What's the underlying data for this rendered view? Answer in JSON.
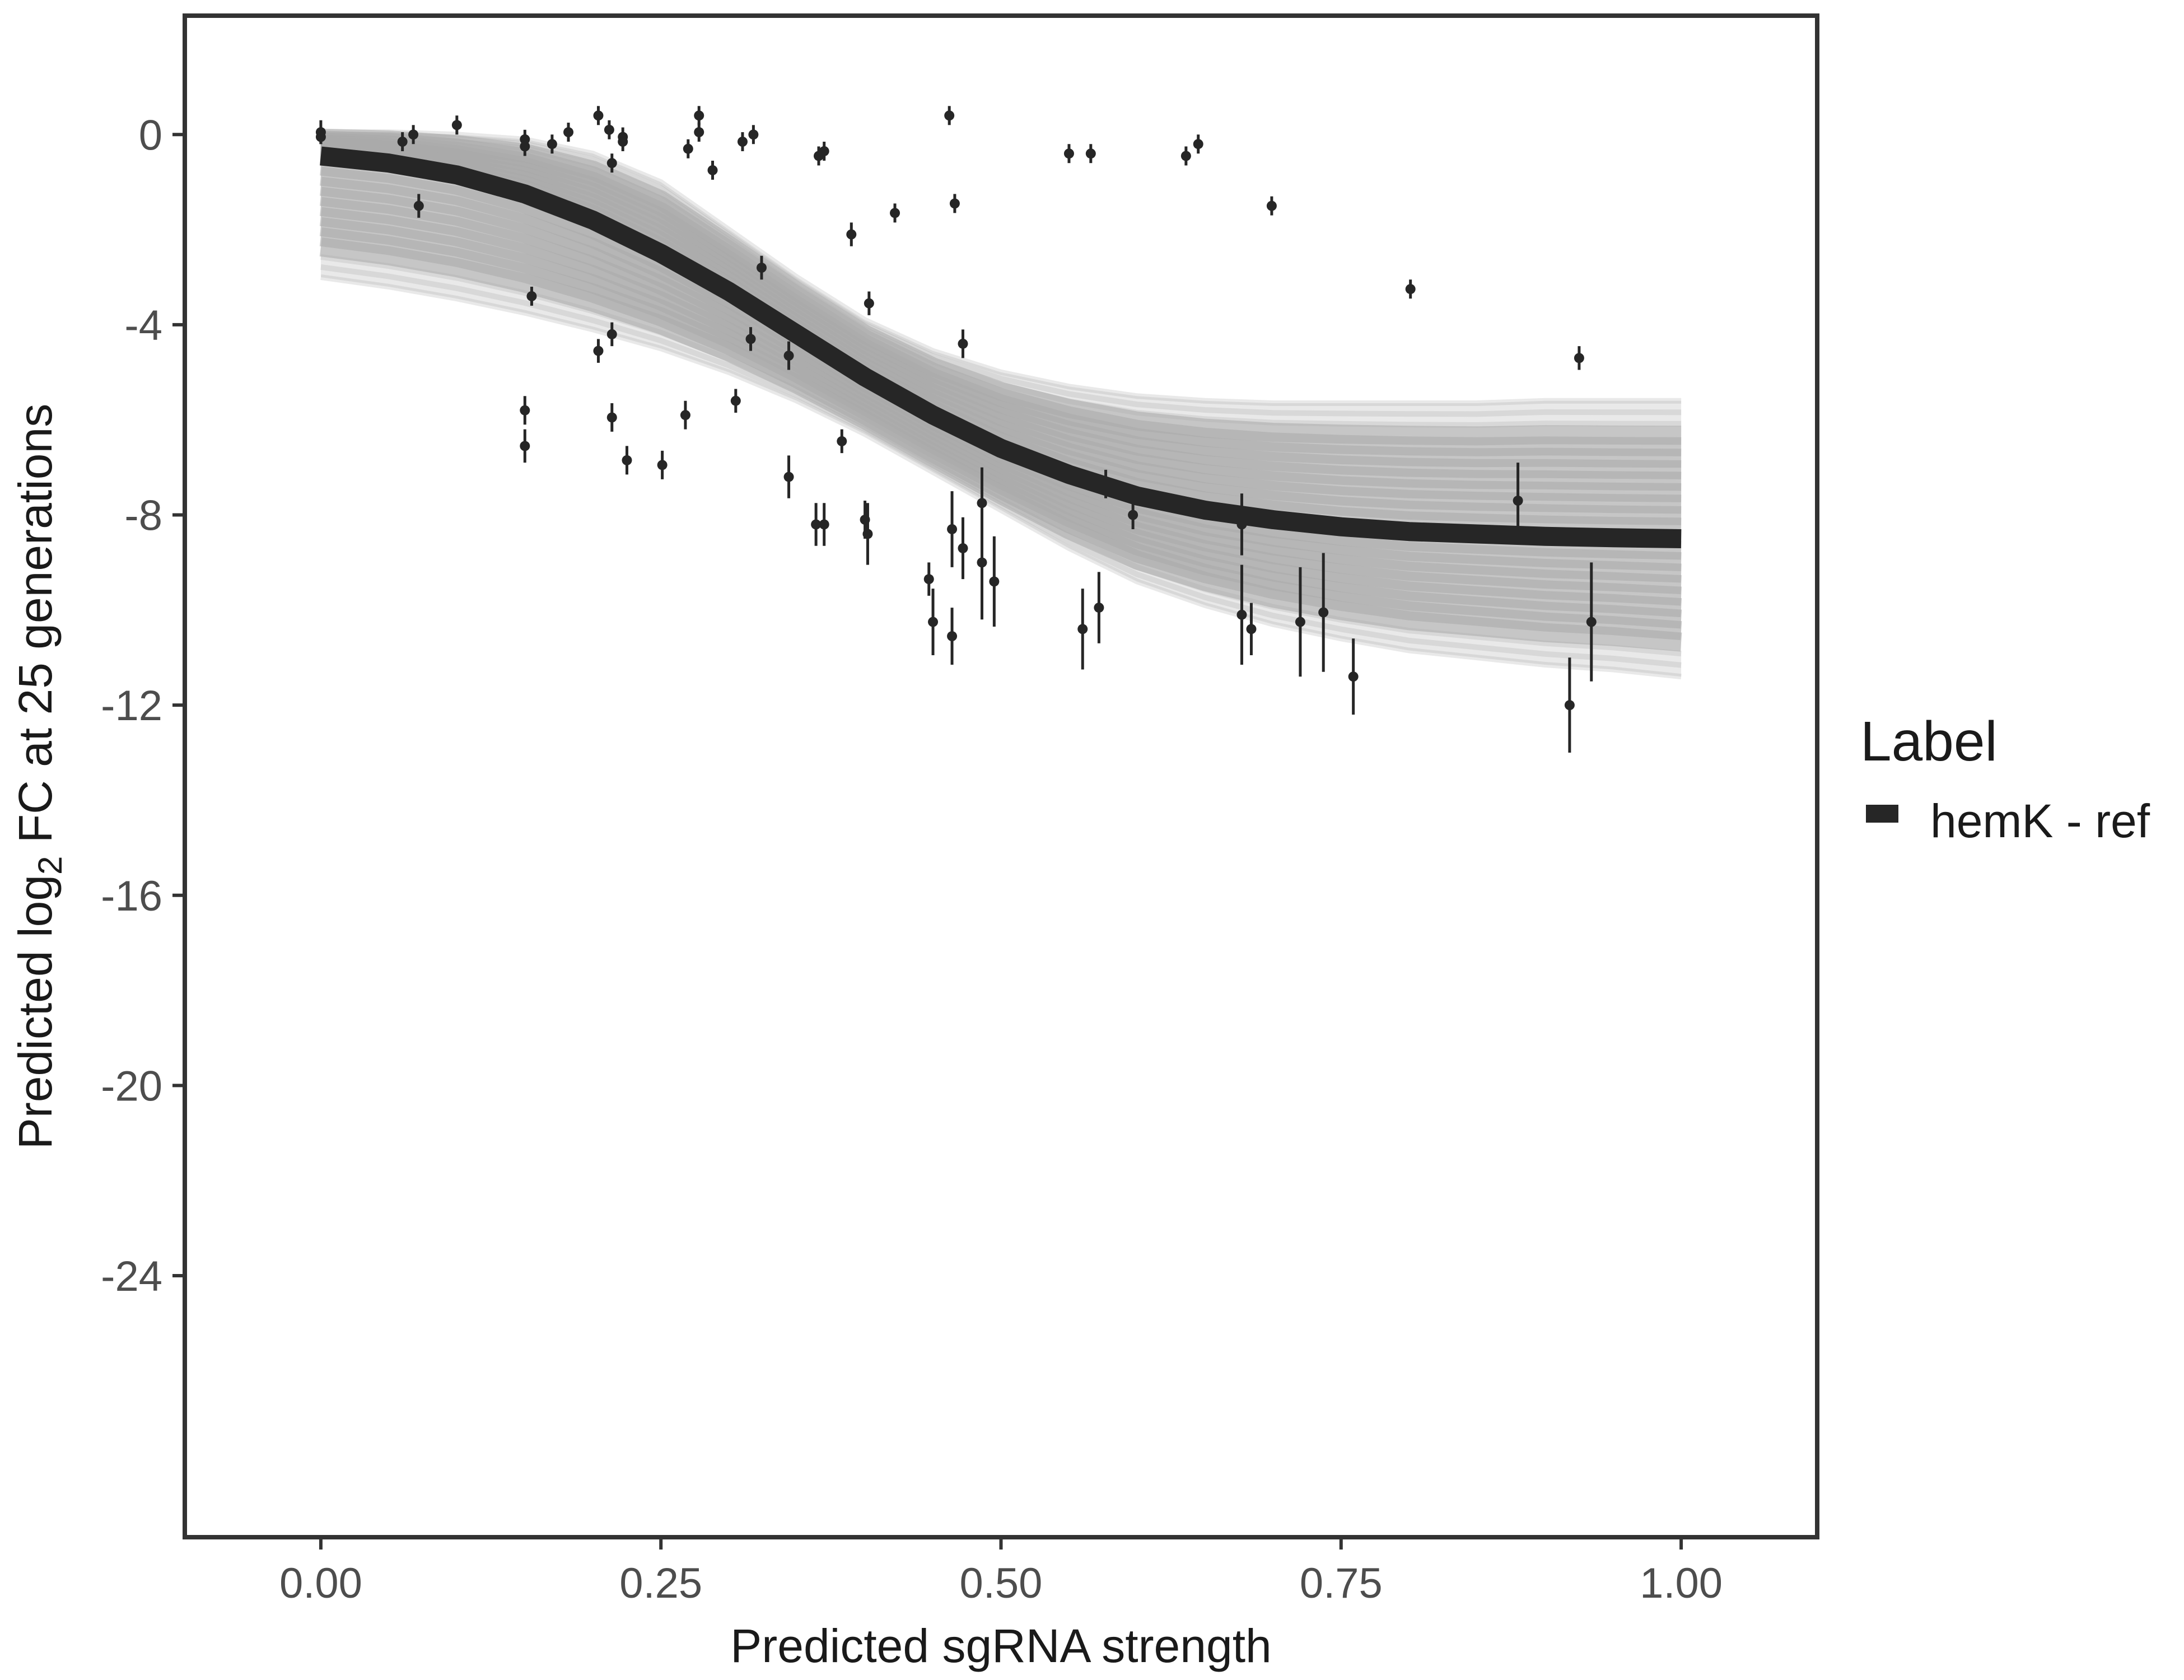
{
  "chart_data": {
    "type": "line",
    "xlabel": "Predicted sgRNA strength",
    "ylabel": {
      "prefix": "Predicted  log",
      "subscript": "2",
      "suffix": " FC at 25 generations"
    },
    "xlim": [
      -0.1,
      1.1
    ],
    "ylim": [
      -29.5,
      2.5
    ],
    "x_ticks": [
      0.0,
      0.25,
      0.5,
      0.75,
      1.0
    ],
    "x_tick_labels": [
      "0.00",
      "0.25",
      "0.50",
      "0.75",
      "1.00"
    ],
    "y_ticks": [
      0,
      -4,
      -8,
      -12,
      -16,
      -20,
      -24
    ],
    "y_tick_labels": [
      "0",
      "-4",
      "-8",
      "-12",
      "-16",
      "-20",
      "-24"
    ],
    "grid": false,
    "legend": {
      "title": "Label",
      "position": "right",
      "entries": [
        {
          "label": "hemK - ref",
          "color": "#262626"
        }
      ]
    },
    "fit_curve": {
      "label": "hemK - ref",
      "color": "#262626",
      "points": [
        [
          0.0,
          -0.45
        ],
        [
          0.05,
          -0.6
        ],
        [
          0.1,
          -0.85
        ],
        [
          0.15,
          -1.25
        ],
        [
          0.2,
          -1.8
        ],
        [
          0.25,
          -2.5
        ],
        [
          0.3,
          -3.3
        ],
        [
          0.35,
          -4.2
        ],
        [
          0.4,
          -5.1
        ],
        [
          0.45,
          -5.9
        ],
        [
          0.5,
          -6.6
        ],
        [
          0.55,
          -7.15
        ],
        [
          0.6,
          -7.6
        ],
        [
          0.65,
          -7.9
        ],
        [
          0.7,
          -8.1
        ],
        [
          0.75,
          -8.25
        ],
        [
          0.8,
          -8.35
        ],
        [
          0.85,
          -8.4
        ],
        [
          0.9,
          -8.45
        ],
        [
          0.95,
          -8.48
        ],
        [
          1.0,
          -8.5
        ]
      ]
    },
    "band": {
      "color": "#b3b3b3",
      "upper": [
        [
          0.0,
          0.05
        ],
        [
          0.05,
          0.05
        ],
        [
          0.1,
          0.0
        ],
        [
          0.15,
          -0.1
        ],
        [
          0.2,
          -0.4
        ],
        [
          0.25,
          -1.0
        ],
        [
          0.3,
          -2.0
        ],
        [
          0.35,
          -3.0
        ],
        [
          0.4,
          -3.9
        ],
        [
          0.45,
          -4.55
        ],
        [
          0.5,
          -5.0
        ],
        [
          0.55,
          -5.3
        ],
        [
          0.6,
          -5.5
        ],
        [
          0.65,
          -5.6
        ],
        [
          0.7,
          -5.65
        ],
        [
          0.75,
          -5.65
        ],
        [
          0.8,
          -5.65
        ],
        [
          0.85,
          -5.65
        ],
        [
          0.9,
          -5.6
        ],
        [
          0.95,
          -5.6
        ],
        [
          1.0,
          -5.6
        ]
      ],
      "lower": [
        [
          0.0,
          -3.0
        ],
        [
          0.05,
          -3.2
        ],
        [
          0.1,
          -3.45
        ],
        [
          0.15,
          -3.75
        ],
        [
          0.2,
          -4.1
        ],
        [
          0.25,
          -4.5
        ],
        [
          0.3,
          -5.0
        ],
        [
          0.35,
          -5.6
        ],
        [
          0.4,
          -6.3
        ],
        [
          0.45,
          -7.1
        ],
        [
          0.5,
          -7.9
        ],
        [
          0.55,
          -8.7
        ],
        [
          0.6,
          -9.4
        ],
        [
          0.65,
          -9.9
        ],
        [
          0.7,
          -10.3
        ],
        [
          0.75,
          -10.6
        ],
        [
          0.8,
          -10.85
        ],
        [
          0.85,
          -11.0
        ],
        [
          0.9,
          -11.15
        ],
        [
          0.95,
          -11.25
        ],
        [
          1.0,
          -11.4
        ]
      ]
    },
    "points": [
      {
        "x": 0.0,
        "y": 0.05,
        "err": 0.25
      },
      {
        "x": 0.0,
        "y": -0.05,
        "err": 0.15
      },
      {
        "x": 0.06,
        "y": -0.15,
        "err": 0.2
      },
      {
        "x": 0.068,
        "y": 0.0,
        "err": 0.2
      },
      {
        "x": 0.072,
        "y": -1.5,
        "err": 0.25
      },
      {
        "x": 0.1,
        "y": 0.2,
        "err": 0.2
      },
      {
        "x": 0.15,
        "y": -0.1,
        "err": 0.2
      },
      {
        "x": 0.15,
        "y": -0.25,
        "err": 0.2
      },
      {
        "x": 0.155,
        "y": -3.4,
        "err": 0.2
      },
      {
        "x": 0.15,
        "y": -5.8,
        "err": 0.3
      },
      {
        "x": 0.15,
        "y": -6.55,
        "err": 0.35
      },
      {
        "x": 0.17,
        "y": -0.2,
        "err": 0.2
      },
      {
        "x": 0.182,
        "y": 0.05,
        "err": 0.2
      },
      {
        "x": 0.204,
        "y": 0.4,
        "err": 0.2
      },
      {
        "x": 0.204,
        "y": -4.55,
        "err": 0.25
      },
      {
        "x": 0.212,
        "y": 0.1,
        "err": 0.2
      },
      {
        "x": 0.214,
        "y": -0.6,
        "err": 0.2
      },
      {
        "x": 0.214,
        "y": -4.2,
        "err": 0.25
      },
      {
        "x": 0.214,
        "y": -5.95,
        "err": 0.3
      },
      {
        "x": 0.222,
        "y": -0.05,
        "err": 0.2
      },
      {
        "x": 0.222,
        "y": -0.15,
        "err": 0.2
      },
      {
        "x": 0.225,
        "y": -6.85,
        "err": 0.3
      },
      {
        "x": 0.251,
        "y": -6.95,
        "err": 0.3
      },
      {
        "x": 0.268,
        "y": -5.9,
        "err": 0.3
      },
      {
        "x": 0.27,
        "y": -0.3,
        "err": 0.2
      },
      {
        "x": 0.278,
        "y": 0.4,
        "err": 0.2
      },
      {
        "x": 0.278,
        "y": 0.05,
        "err": 0.2
      },
      {
        "x": 0.288,
        "y": -0.75,
        "err": 0.2
      },
      {
        "x": 0.305,
        "y": -5.6,
        "err": 0.25
      },
      {
        "x": 0.31,
        "y": -0.15,
        "err": 0.2
      },
      {
        "x": 0.316,
        "y": -4.3,
        "err": 0.25
      },
      {
        "x": 0.318,
        "y": 0.0,
        "err": 0.2
      },
      {
        "x": 0.324,
        "y": -2.8,
        "err": 0.25
      },
      {
        "x": 0.344,
        "y": -4.65,
        "err": 0.3
      },
      {
        "x": 0.344,
        "y": -7.2,
        "err": 0.45
      },
      {
        "x": 0.364,
        "y": -8.2,
        "err": 0.45
      },
      {
        "x": 0.366,
        "y": -0.45,
        "err": 0.2
      },
      {
        "x": 0.37,
        "y": -0.35,
        "err": 0.2
      },
      {
        "x": 0.37,
        "y": -8.2,
        "err": 0.45
      },
      {
        "x": 0.383,
        "y": -6.45,
        "err": 0.25
      },
      {
        "x": 0.39,
        "y": -2.1,
        "err": 0.25
      },
      {
        "x": 0.4,
        "y": -8.1,
        "err": 0.4
      },
      {
        "x": 0.402,
        "y": -8.4,
        "err": 0.65
      },
      {
        "x": 0.403,
        "y": -3.55,
        "err": 0.25
      },
      {
        "x": 0.422,
        "y": -1.65,
        "err": 0.2
      },
      {
        "x": 0.447,
        "y": -9.35,
        "err": 0.35
      },
      {
        "x": 0.45,
        "y": -10.25,
        "err": 0.7
      },
      {
        "x": 0.462,
        "y": 0.4,
        "err": 0.2
      },
      {
        "x": 0.464,
        "y": -8.3,
        "err": 0.8
      },
      {
        "x": 0.464,
        "y": -10.55,
        "err": 0.6
      },
      {
        "x": 0.466,
        "y": -1.45,
        "err": 0.2
      },
      {
        "x": 0.472,
        "y": -4.4,
        "err": 0.3
      },
      {
        "x": 0.472,
        "y": -8.7,
        "err": 0.65
      },
      {
        "x": 0.486,
        "y": -7.75,
        "err": 0.75
      },
      {
        "x": 0.486,
        "y": -9.0,
        "err": 1.2
      },
      {
        "x": 0.495,
        "y": -9.4,
        "err": 0.95
      },
      {
        "x": 0.55,
        "y": -0.4,
        "err": 0.2
      },
      {
        "x": 0.56,
        "y": -10.4,
        "err": 0.85
      },
      {
        "x": 0.566,
        "y": -0.4,
        "err": 0.2
      },
      {
        "x": 0.572,
        "y": -9.95,
        "err": 0.75
      },
      {
        "x": 0.577,
        "y": -7.35,
        "err": 0.3
      },
      {
        "x": 0.597,
        "y": -8.0,
        "err": 0.3
      },
      {
        "x": 0.636,
        "y": -0.45,
        "err": 0.2
      },
      {
        "x": 0.645,
        "y": -0.2,
        "err": 0.2
      },
      {
        "x": 0.677,
        "y": -8.2,
        "err": 0.65
      },
      {
        "x": 0.677,
        "y": -10.1,
        "err": 1.05
      },
      {
        "x": 0.684,
        "y": -10.4,
        "err": 0.55
      },
      {
        "x": 0.699,
        "y": -1.5,
        "err": 0.2
      },
      {
        "x": 0.72,
        "y": -10.25,
        "err": 1.15
      },
      {
        "x": 0.737,
        "y": -10.05,
        "err": 1.25
      },
      {
        "x": 0.759,
        "y": -11.4,
        "err": 0.8
      },
      {
        "x": 0.801,
        "y": -3.25,
        "err": 0.2
      },
      {
        "x": 0.88,
        "y": -7.7,
        "err": 0.8
      },
      {
        "x": 0.918,
        "y": -12.0,
        "err": 1.0
      },
      {
        "x": 0.925,
        "y": -4.7,
        "err": 0.25
      },
      {
        "x": 0.934,
        "y": -10.25,
        "err": 1.25
      }
    ]
  }
}
